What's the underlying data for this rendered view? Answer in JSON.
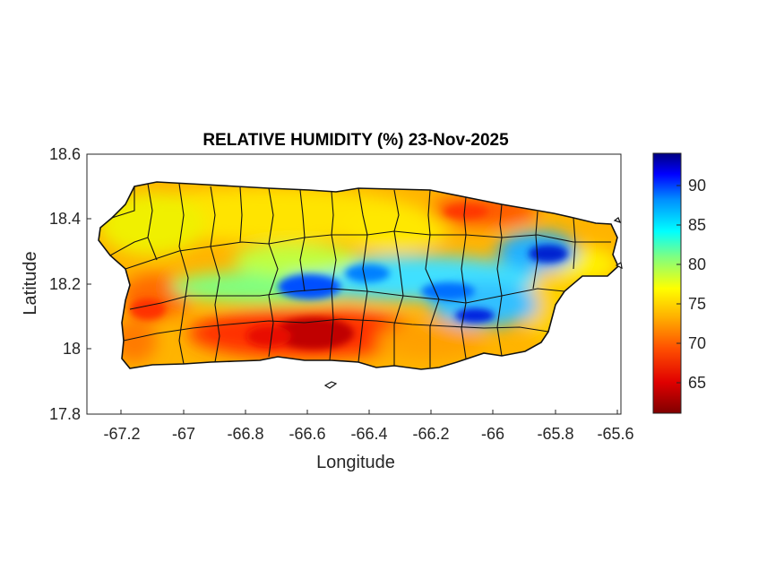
{
  "map": {
    "title": "RELATIVE HUMIDITY (%) 23-Nov-2025",
    "xlabel": "Longitude",
    "ylabel": "Latitude",
    "xlim": [
      -67.3,
      -65.58
    ],
    "ylim": [
      17.8,
      18.6
    ],
    "x_ticks": [
      "-67.2",
      "-67",
      "-66.8",
      "-66.6",
      "-66.4",
      "-66.2",
      "-66",
      "-65.8",
      "-65.6"
    ],
    "y_ticks": [
      "18.6",
      "18.4",
      "18.2",
      "18",
      "17.8"
    ],
    "colorbar": {
      "colormap": "jet",
      "range": [
        61,
        94
      ],
      "ticks": [
        "90",
        "85",
        "80",
        "75",
        "70",
        "65"
      ]
    }
  }
}
